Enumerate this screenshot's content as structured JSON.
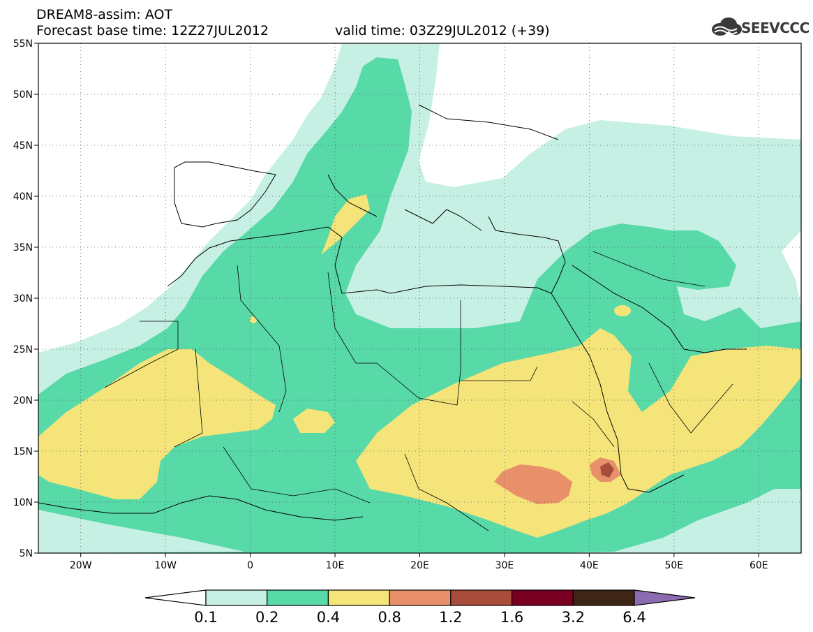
{
  "header": {
    "line1": "DREAM8-assim: AOT",
    "line2": "Forecast base time: 12Z27JUL2012",
    "valid": "valid time: 03Z29JUL2012 (+39)"
  },
  "logo": {
    "text": "SEEVCCC",
    "icon": "cloud-logo-icon"
  },
  "map": {
    "lon_range": [
      -25,
      65
    ],
    "lat_range": [
      5,
      55
    ],
    "lat_ticks": [
      "55N",
      "50N",
      "45N",
      "40N",
      "35N",
      "30N",
      "25N",
      "20N",
      "15N",
      "10N",
      "5N"
    ],
    "lat_values": [
      55,
      50,
      45,
      40,
      35,
      30,
      25,
      20,
      15,
      10,
      5
    ],
    "lon_ticks": [
      "20W",
      "10W",
      "0",
      "10E",
      "20E",
      "30E",
      "40E",
      "50E",
      "60E"
    ],
    "lon_values": [
      -20,
      -10,
      0,
      10,
      20,
      30,
      40,
      50,
      60
    ],
    "grid": "dotted"
  },
  "colorbar": {
    "labels": [
      "0.1",
      "0.2",
      "0.4",
      "0.8",
      "1.2",
      "1.6",
      "3.2",
      "6.4"
    ],
    "colors": [
      "#ffffff",
      "#c7f0e5",
      "#57d9a8",
      "#f4e47a",
      "#e8906a",
      "#a84d3c",
      "#7a0021",
      "#3e2616",
      "#8c6bb1"
    ]
  }
}
